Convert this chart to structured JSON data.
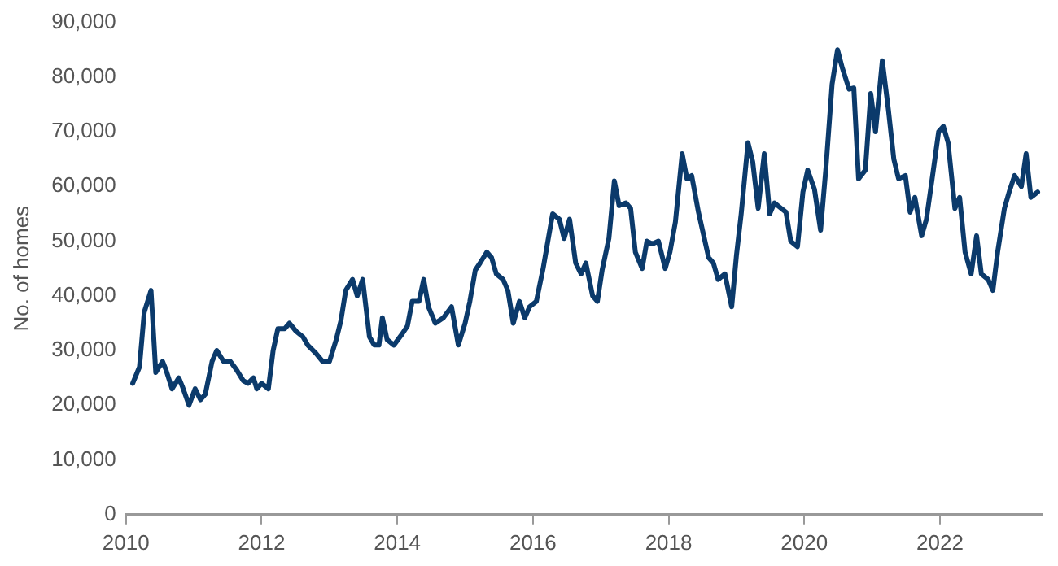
{
  "chart_data": {
    "type": "line",
    "ylabel": "No. of homes",
    "color": "#0b3a6b",
    "x": [
      2010.1,
      2010.2,
      2010.27,
      2010.37,
      2010.44,
      2010.54,
      2010.59,
      2010.68,
      2010.78,
      2010.83,
      2010.93,
      2011.02,
      2011.1,
      2011.17,
      2011.27,
      2011.34,
      2011.44,
      2011.54,
      2011.63,
      2011.73,
      2011.8,
      2011.88,
      2011.93,
      2012.0,
      2012.1,
      2012.17,
      2012.24,
      2012.34,
      2012.41,
      2012.51,
      2012.61,
      2012.68,
      2012.8,
      2012.9,
      2013.0,
      2013.1,
      2013.17,
      2013.24,
      2013.34,
      2013.41,
      2013.49,
      2013.59,
      2013.66,
      2013.73,
      2013.78,
      2013.85,
      2013.95,
      2014.07,
      2014.15,
      2014.22,
      2014.32,
      2014.39,
      2014.46,
      2014.56,
      2014.68,
      2014.8,
      2014.9,
      2015.0,
      2015.07,
      2015.15,
      2015.22,
      2015.32,
      2015.39,
      2015.46,
      2015.56,
      2015.63,
      2015.71,
      2015.8,
      2015.88,
      2015.95,
      2016.05,
      2016.15,
      2016.22,
      2016.29,
      2016.39,
      2016.46,
      2016.54,
      2016.63,
      2016.71,
      2016.78,
      2016.88,
      2016.95,
      2017.02,
      2017.12,
      2017.2,
      2017.27,
      2017.37,
      2017.44,
      2017.51,
      2017.61,
      2017.68,
      2017.76,
      2017.85,
      2017.95,
      2018.02,
      2018.1,
      2018.2,
      2018.27,
      2018.34,
      2018.44,
      2018.59,
      2018.66,
      2018.73,
      2018.83,
      2018.93,
      2019.0,
      2019.07,
      2019.17,
      2019.24,
      2019.32,
      2019.41,
      2019.49,
      2019.56,
      2019.66,
      2019.73,
      2019.8,
      2019.9,
      2019.98,
      2020.05,
      2020.15,
      2020.24,
      2020.32,
      2020.41,
      2020.49,
      2020.56,
      2020.66,
      2020.73,
      2020.8,
      2020.9,
      2020.98,
      2021.05,
      2021.15,
      2021.24,
      2021.32,
      2021.39,
      2021.49,
      2021.56,
      2021.63,
      2021.73,
      2021.8,
      2021.88,
      2021.98,
      2022.05,
      2022.12,
      2022.22,
      2022.29,
      2022.37,
      2022.46,
      2022.54,
      2022.61,
      2022.71,
      2022.78,
      2022.85,
      2022.95,
      2023.02,
      2023.1,
      2023.2,
      2023.27,
      2023.34,
      2023.44
    ],
    "values": [
      24000,
      27000,
      37000,
      41000,
      26000,
      28000,
      26500,
      23000,
      25000,
      23500,
      20000,
      23000,
      21000,
      22000,
      28000,
      30000,
      28000,
      28000,
      26500,
      24500,
      24000,
      25000,
      23000,
      24000,
      23000,
      30000,
      34000,
      34000,
      35000,
      33500,
      32500,
      31000,
      29500,
      28000,
      28000,
      32000,
      35500,
      41000,
      43000,
      40000,
      43000,
      32500,
      31000,
      31000,
      36000,
      32000,
      31000,
      33000,
      34500,
      39000,
      39000,
      43000,
      38000,
      35000,
      36000,
      38000,
      31000,
      35000,
      39000,
      44700,
      46000,
      48000,
      47000,
      44000,
      43000,
      41000,
      35000,
      39000,
      36000,
      38000,
      39000,
      45000,
      50000,
      55000,
      54000,
      50500,
      54000,
      46000,
      44000,
      46000,
      40000,
      39000,
      44700,
      50500,
      61000,
      56500,
      57000,
      56000,
      48000,
      45000,
      50000,
      49500,
      50000,
      45000,
      48000,
      53500,
      66000,
      61400,
      62000,
      55300,
      47000,
      46000,
      43000,
      44000,
      38000,
      47400,
      55000,
      68000,
      64500,
      56000,
      66000,
      55000,
      57000,
      56000,
      55300,
      50000,
      49000,
      59000,
      63000,
      59500,
      52000,
      63500,
      78700,
      85000,
      81700,
      77800,
      78000,
      61400,
      63000,
      77000,
      70000,
      83000,
      74000,
      65000,
      61400,
      62000,
      55300,
      58000,
      51000,
      54000,
      61000,
      70000,
      71000,
      68000,
      56000,
      58000,
      48000,
      44000,
      51000,
      44000,
      43000,
      41000,
      48000,
      56000,
      59000,
      62000,
      60000,
      66000,
      58000,
      59000
    ],
    "xlim": [
      2010,
      2023.5
    ],
    "xticks": [
      2010,
      2012,
      2014,
      2016,
      2018,
      2020,
      2022
    ],
    "ylim": [
      0,
      90000
    ],
    "yticks": [
      {
        "value": 0,
        "label": "0"
      },
      {
        "value": 10000,
        "label": "10,000"
      },
      {
        "value": 20000,
        "label": "20,000"
      },
      {
        "value": 30000,
        "label": "30,000"
      },
      {
        "value": 40000,
        "label": "40,000"
      },
      {
        "value": 50000,
        "label": "50,000"
      },
      {
        "value": 60000,
        "label": "60,000"
      },
      {
        "value": 70000,
        "label": "70,000"
      },
      {
        "value": 80000,
        "label": "80,000"
      },
      {
        "value": 90000,
        "label": "90,000"
      }
    ]
  }
}
